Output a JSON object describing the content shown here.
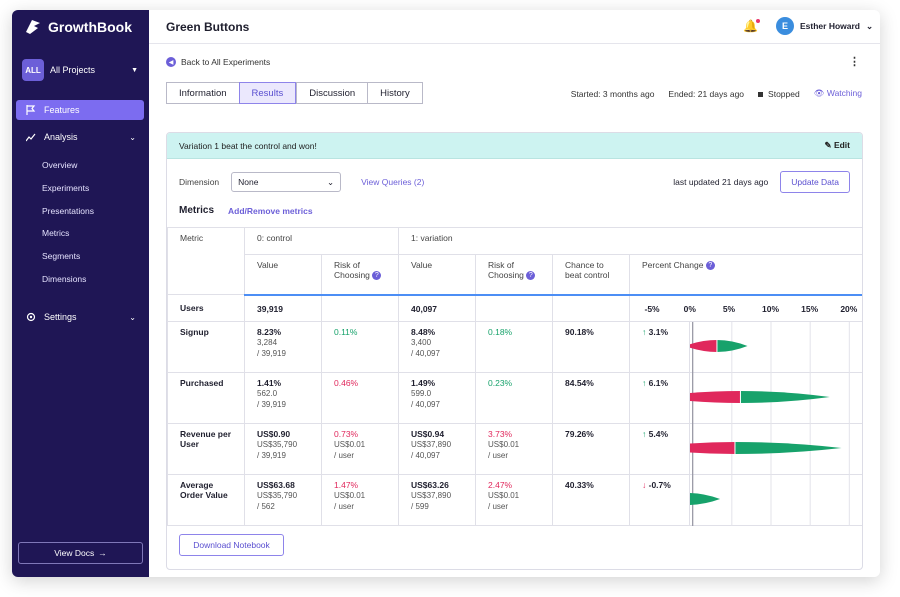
{
  "app": {
    "name": "GrowthBook"
  },
  "sidebar": {
    "project": {
      "badge": "ALL",
      "label": "All Projects"
    },
    "items": [
      {
        "label": "Features"
      },
      {
        "label": "Analysis"
      },
      {
        "label": "Settings"
      }
    ],
    "sub": [
      "Overview",
      "Experiments",
      "Presentations",
      "Metrics",
      "Segments",
      "Dimensions"
    ],
    "view_docs": "View Docs"
  },
  "header": {
    "title": "Green Buttons",
    "user": "Esther Howard",
    "avatar": "E"
  },
  "nav": {
    "back": "Back to All Experiments",
    "tabs": [
      "Information",
      "Results",
      "Discussion",
      "History"
    ],
    "active_tab": "Results"
  },
  "status": {
    "started": "Started: 3 months ago",
    "ended": "Ended: 21 days ago",
    "state": "Stopped",
    "watch": "Watching"
  },
  "banner": {
    "text": "Variation 1 beat the control and won!",
    "edit": "Edit"
  },
  "controls": {
    "dimension_label": "Dimension",
    "dimension_value": "None",
    "view_queries": "View Queries (2)",
    "last_updated": "last updated 21 days ago",
    "update_btn": "Update Data"
  },
  "metrics": {
    "title": "Metrics",
    "add_remove": "Add/Remove metrics"
  },
  "table": {
    "h_metric": "Metric",
    "h_control": "0: control",
    "h_variation": "1: variation",
    "h_value": "Value",
    "h_risk": "Risk of Choosing",
    "h_chance": "Chance to beat control",
    "h_pct": "Percent Change",
    "ticks": [
      "-5%",
      "0%",
      "5%",
      "10%",
      "15%",
      "20%"
    ],
    "users": {
      "label": "Users",
      "control": "39,919",
      "variation": "40,097"
    },
    "rows": [
      {
        "metric": "Signup",
        "c_val": "8.23%",
        "c_s1": "3,284",
        "c_s2": "/ 39,919",
        "c_risk": "0.11%",
        "c_risk_s1": "",
        "c_risk_s2": "",
        "v_val": "8.48%",
        "v_s1": "3,400",
        "v_s2": "/ 40,097",
        "v_risk": "0.18%",
        "v_risk_s1": "",
        "v_risk_s2": "",
        "chance": "90.18%",
        "pct": "3.1%",
        "dir": "↑",
        "ci": [
          -1,
          3.1,
          7
        ]
      },
      {
        "metric": "Purchased",
        "c_val": "1.41%",
        "c_s1": "562.0",
        "c_s2": "/ 39,919",
        "c_risk": "0.46%",
        "c_risk_s1": "",
        "c_risk_s2": "",
        "v_val": "1.49%",
        "v_s1": "599.0",
        "v_s2": "/ 40,097",
        "v_risk": "0.23%",
        "v_risk_s1": "",
        "v_risk_s2": "",
        "chance": "84.54%",
        "pct": "6.1%",
        "dir": "↑",
        "ci": [
          -5,
          6.1,
          17.5
        ]
      },
      {
        "metric": "Revenue per User",
        "c_val": "US$0.90",
        "c_s1": "US$35,790",
        "c_s2": "/ 39,919",
        "c_risk": "0.73%",
        "c_risk_s1": "US$0.01",
        "c_risk_s2": "/ user",
        "v_val": "US$0.94",
        "v_s1": "US$37,890",
        "v_s2": "/ 40,097",
        "v_risk": "3.73%",
        "v_risk_s1": "US$0.01",
        "v_risk_s2": "/ user",
        "chance": "79.26%",
        "pct": "5.4%",
        "dir": "↑",
        "ci": [
          -6,
          5.4,
          19
        ]
      },
      {
        "metric": "Average Order Value",
        "c_val": "US$63.68",
        "c_s1": "US$35,790",
        "c_s2": "/ 562",
        "c_risk": "1.47%",
        "c_risk_s1": "US$0.01",
        "c_risk_s2": "/ user",
        "v_val": "US$63.26",
        "v_s1": "US$37,890",
        "v_s2": "/ 599",
        "v_risk": "2.47%",
        "v_risk_s1": "US$0.01",
        "v_risk_s2": "/ user",
        "chance": "40.33%",
        "pct": "-0.7%",
        "dir": "↓",
        "ci": [
          -5,
          -0.7,
          3.5
        ]
      }
    ]
  },
  "download": "Download Notebook",
  "colors": {
    "sidebar": "#1f1655",
    "accent": "#6c5fd8",
    "win": "#17a26b",
    "lose": "#e0285c"
  }
}
